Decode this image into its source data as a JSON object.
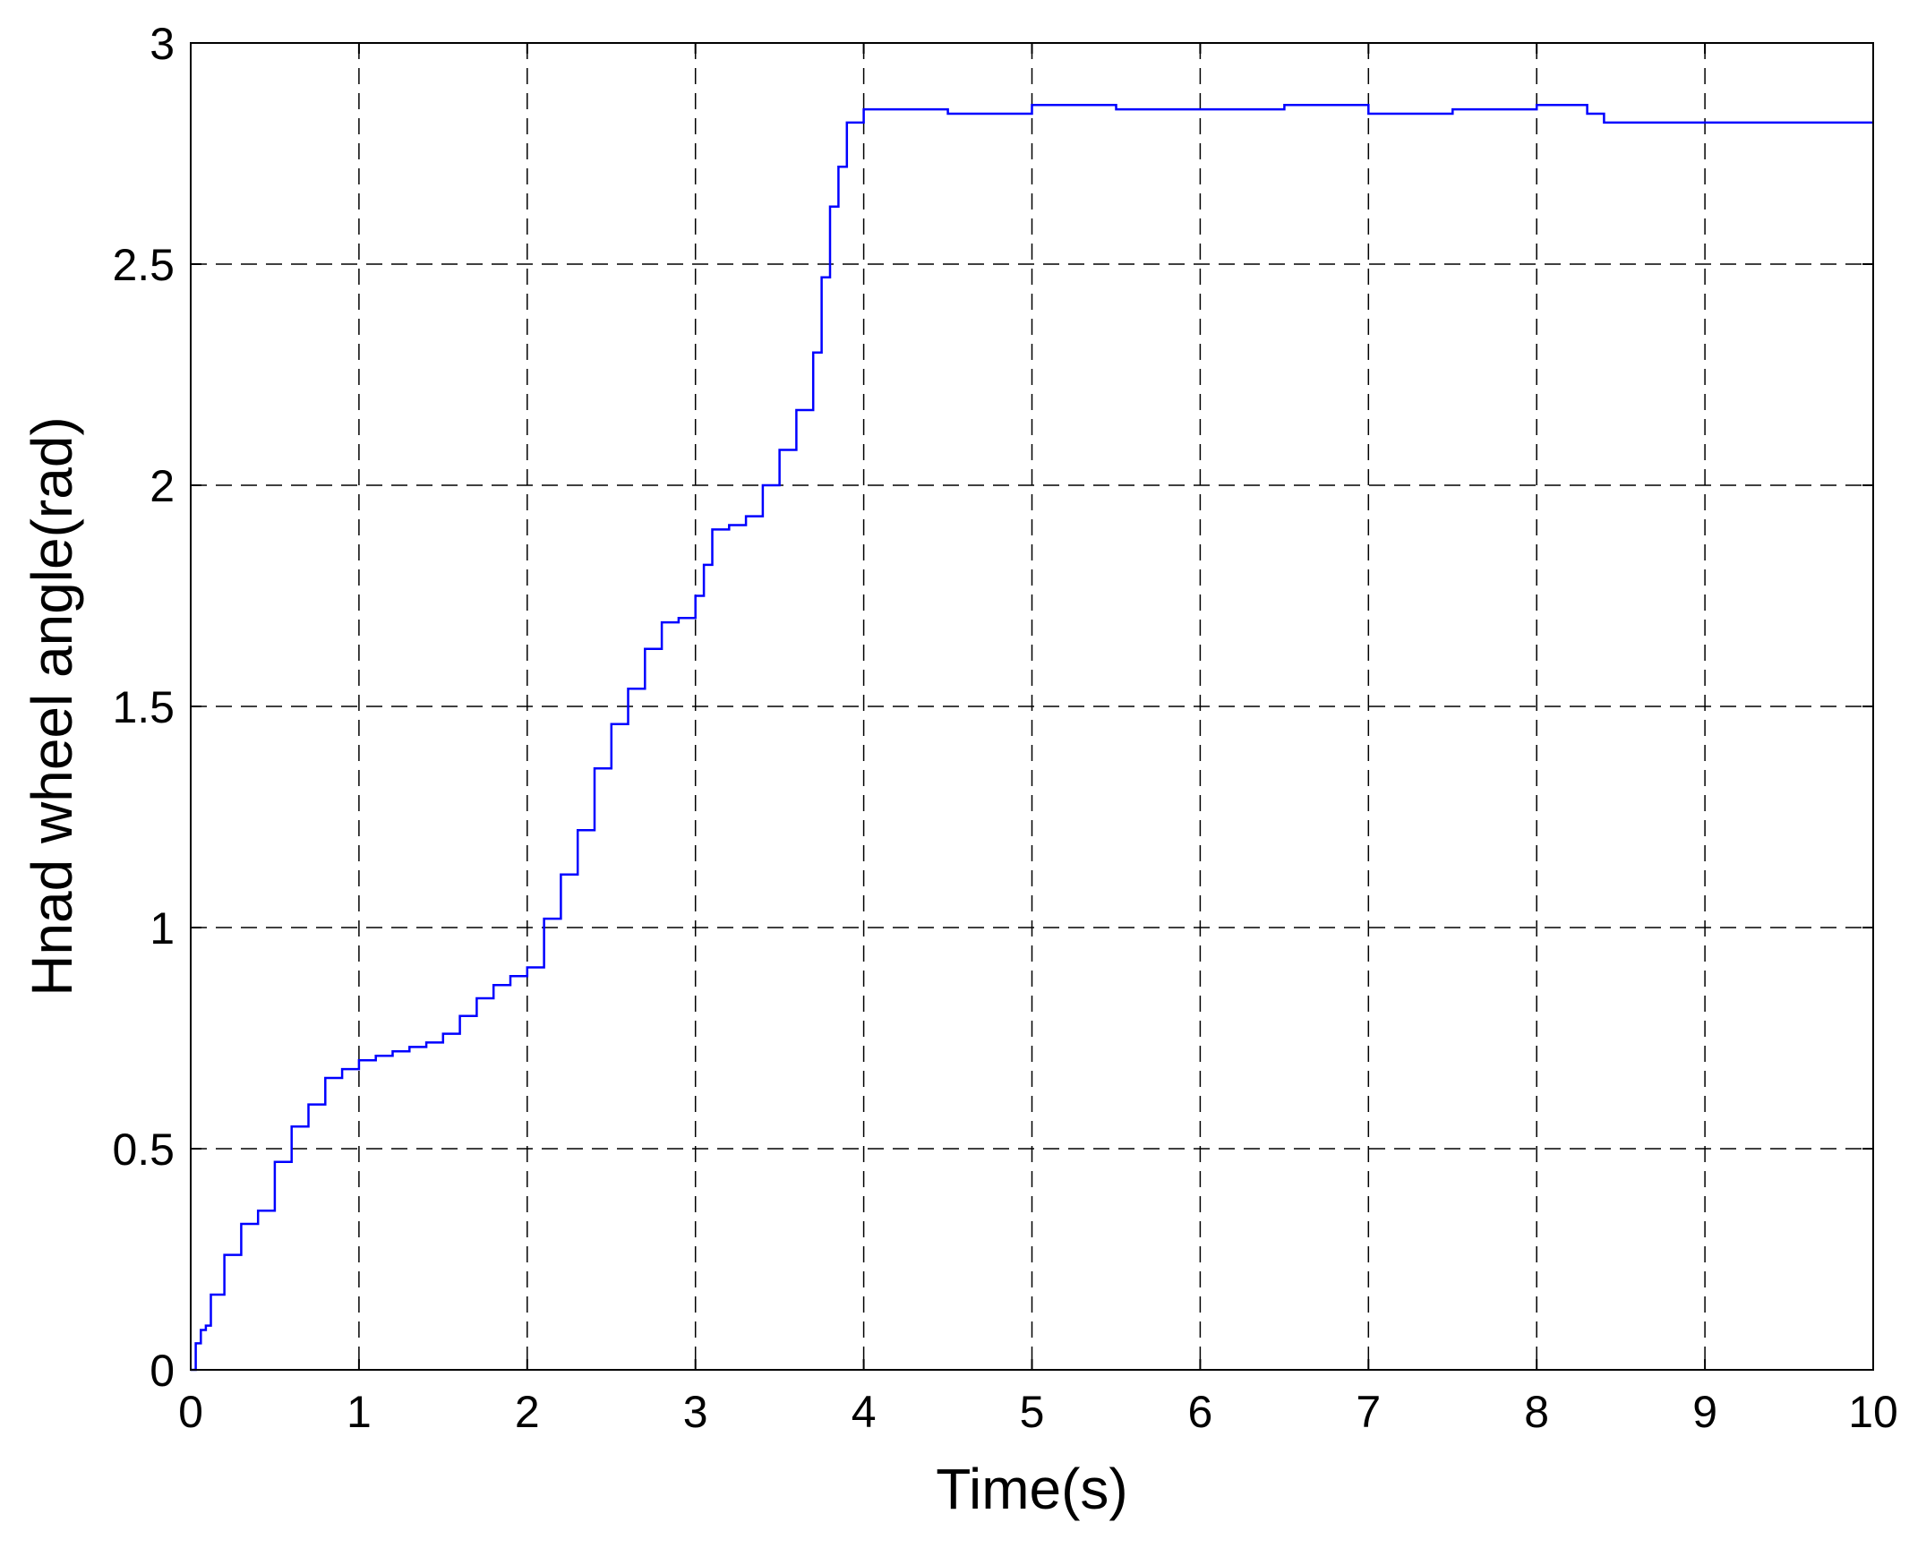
{
  "chart_data": {
    "type": "line",
    "title": "",
    "xlabel": "Time(s)",
    "ylabel": "Hnad wheel angle(rad)",
    "xlim": [
      0,
      10
    ],
    "ylim": [
      0,
      3
    ],
    "x_ticks": [
      "0",
      "1",
      "2",
      "3",
      "4",
      "5",
      "6",
      "7",
      "8",
      "9",
      "10"
    ],
    "y_ticks": [
      "0",
      "0.5",
      "1",
      "1.5",
      "2",
      "2.5",
      "3"
    ],
    "grid": true,
    "grid_style": "dashed",
    "line_color": "#0000ff",
    "line_style": "step",
    "series": [
      {
        "x": [
          0,
          0.03,
          0.06,
          0.09,
          0.12,
          0.2,
          0.3,
          0.4,
          0.5,
          0.6,
          0.7,
          0.8,
          0.9,
          1.0,
          1.1,
          1.2,
          1.3,
          1.4,
          1.5,
          1.6,
          1.7,
          1.8,
          1.9,
          2.0,
          2.1,
          2.2,
          2.3,
          2.4,
          2.5,
          2.6,
          2.7,
          2.8,
          2.9,
          3.0,
          3.05,
          3.1,
          3.2,
          3.3,
          3.4,
          3.5,
          3.6,
          3.7,
          3.75,
          3.8,
          3.85,
          3.9,
          4.0,
          4.5,
          5.0,
          5.5,
          6.0,
          6.5,
          7.0,
          7.5,
          8.0,
          8.3,
          8.4,
          9.0,
          9.5,
          10.0
        ],
        "y": [
          0.0,
          0.06,
          0.09,
          0.1,
          0.17,
          0.26,
          0.33,
          0.36,
          0.47,
          0.55,
          0.6,
          0.66,
          0.68,
          0.7,
          0.71,
          0.72,
          0.73,
          0.74,
          0.76,
          0.8,
          0.84,
          0.87,
          0.89,
          0.91,
          1.02,
          1.12,
          1.22,
          1.36,
          1.46,
          1.54,
          1.63,
          1.69,
          1.7,
          1.75,
          1.82,
          1.9,
          1.91,
          1.93,
          2.0,
          2.08,
          2.17,
          2.3,
          2.47,
          2.63,
          2.72,
          2.82,
          2.85,
          2.84,
          2.86,
          2.85,
          2.85,
          2.86,
          2.84,
          2.85,
          2.86,
          2.84,
          2.82,
          2.82,
          2.82,
          2.82
        ]
      }
    ]
  }
}
